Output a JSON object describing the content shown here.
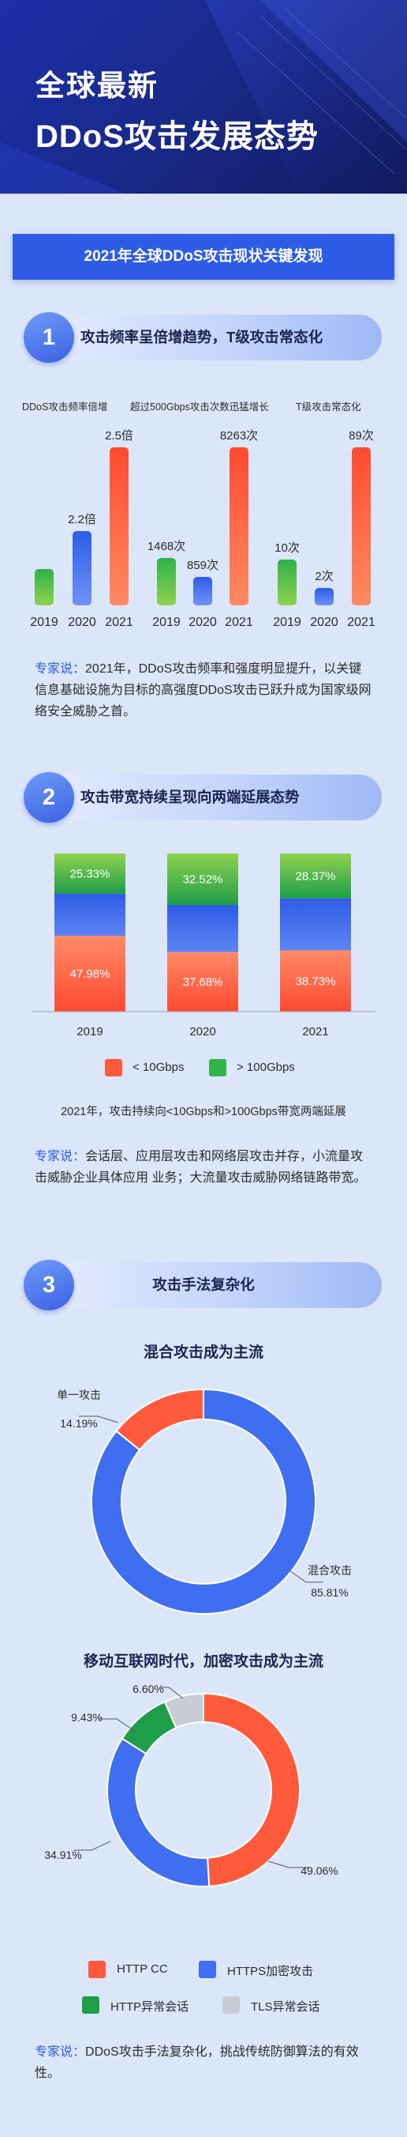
{
  "header": {
    "line1": "全球最新",
    "line2": "DDoS攻击发展态势"
  },
  "banner": "2021年全球DDoS攻击现状关键发现",
  "colors": {
    "orange": "#ff5a3c",
    "blue": "#3f6ff0",
    "green": "#33b44a",
    "gray": "#c8ccd4"
  },
  "section1": {
    "num": "1",
    "title": "攻击频率呈倍增趋势，T级攻击常态化",
    "expert_label": "专家说：",
    "expert_text": "2021年，DDoS攻击频率和强度明显提升，以关键信息基础设施为目标的高强度DDoS攻击已跃升成为国家级网络安全威胁之首。"
  },
  "section2": {
    "num": "2",
    "title": "攻击带宽持续呈现向两端延展态势",
    "legend": [
      {
        "label": "< 10Gbps",
        "color": "#ff5a3c"
      },
      {
        "label": "> 100Gbps",
        "color": "#33b44a"
      }
    ],
    "caption": "2021年，攻击持续向<10Gbps和>100Gbps带宽两端延展",
    "expert_label": "专家说：",
    "expert_text": "会话层、应用层攻击和网络层攻击并存，小流量攻击威胁企业具体应用    业务；大流量攻击威胁网络链路带宽。"
  },
  "section3": {
    "num": "3",
    "title": "攻击手法复杂化",
    "donut1_title": "混合攻击成为主流",
    "donut2_title": "移动互联网时代，加密攻击成为主流",
    "legend": [
      {
        "label": "HTTP CC",
        "color": "#ff5a3c"
      },
      {
        "label": "HTTPS加密攻击",
        "color": "#3f6ff0"
      },
      {
        "label": "HTTP异常会话",
        "color": "#33b44a"
      },
      {
        "label": "TLS异常会话",
        "color": "#c8ccd4"
      }
    ],
    "expert_label": "专家说：",
    "expert_text": "DDoS攻击手法复杂化，挑战传统防御算法的有效性。"
  },
  "chart_data": [
    {
      "type": "bar",
      "title": "DDoS攻击频率倍增",
      "categories": [
        "2019",
        "2020",
        "2021"
      ],
      "values": [
        1.0,
        2.2,
        2.5
      ],
      "labels": [
        "",
        "2.2倍",
        "2.5倍"
      ]
    },
    {
      "type": "bar",
      "title": "超过500Gbps攻击次数迅猛增长",
      "categories": [
        "2019",
        "2020",
        "2021"
      ],
      "values": [
        1468,
        859,
        8263
      ],
      "labels": [
        "1468次",
        "859次",
        "8263次"
      ]
    },
    {
      "type": "bar",
      "title": "T级攻击常态化",
      "categories": [
        "2019",
        "2020",
        "2021"
      ],
      "values": [
        10,
        2,
        89
      ],
      "labels": [
        "10次",
        "2次",
        "89次"
      ]
    },
    {
      "type": "bar",
      "stacked": true,
      "categories": [
        "2019",
        "2020",
        "2021"
      ],
      "series": [
        {
          "name": "< 10Gbps",
          "values": [
            47.98,
            37.68,
            38.73
          ],
          "labels": [
            "47.98%",
            "37.68%",
            "38.73%"
          ]
        },
        {
          "values": [
            26.69,
            29.8,
            32.9
          ]
        },
        {
          "name": "> 100Gbps",
          "values": [
            25.33,
            32.52,
            28.37
          ],
          "labels": [
            "25.33%",
            "32.52%",
            "28.37%"
          ]
        }
      ]
    },
    {
      "type": "pie",
      "title": "混合攻击成为主流",
      "slices": [
        {
          "label": "单一攻击",
          "value": 14.19,
          "text": "14.19%"
        },
        {
          "label": "混合攻击",
          "value": 85.81,
          "text": "85.81%"
        }
      ]
    },
    {
      "type": "pie",
      "title": "移动互联网时代，加密攻击成为主流",
      "slices": [
        {
          "label": "HTTP CC",
          "value": 49.06,
          "text": "49.06%"
        },
        {
          "label": "HTTPS加密攻击",
          "value": 34.91,
          "text": "34.91%"
        },
        {
          "label": "HTTP异常会话",
          "value": 9.43,
          "text": "9.43%"
        },
        {
          "label": "TLS异常会话",
          "value": 6.6,
          "text": "6.60%"
        }
      ]
    }
  ]
}
